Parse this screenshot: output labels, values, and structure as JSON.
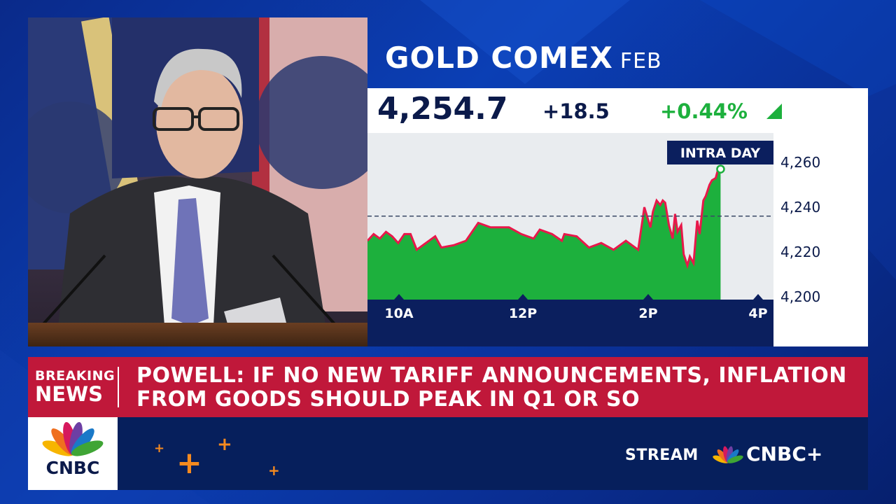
{
  "chart_title": "GOLD COMEX",
  "chart_subtitle": "FEB",
  "quote": {
    "price": "4,254.7",
    "change": "+18.5",
    "percent": "+0.44%"
  },
  "intraday_label": "INTRA DAY",
  "colors": {
    "up": "#1db03d",
    "line": "#e8184a",
    "breaking": "#c0183a",
    "navy": "#061f5c"
  },
  "chart_data": {
    "type": "area",
    "ylim": [
      4200,
      4265
    ],
    "reference_line": 4236,
    "x_ticks": [
      "10A",
      "12P",
      "2P",
      "4P"
    ],
    "y_ticks": [
      "4,260",
      "4,240",
      "4,220",
      "4,200"
    ],
    "x": [
      0,
      5,
      10,
      15,
      20,
      25,
      30,
      35,
      40,
      45,
      50,
      55,
      60,
      70,
      80,
      90,
      100,
      115,
      125,
      135,
      140,
      145,
      150,
      158,
      160,
      170,
      180,
      190,
      200,
      210,
      220,
      225,
      230,
      232,
      235,
      238,
      240,
      242,
      245,
      248,
      250,
      252,
      255,
      257,
      260,
      262,
      265,
      268,
      270,
      273,
      275,
      278,
      280,
      283,
      285,
      287
    ],
    "y": [
      4225,
      4228,
      4226,
      4229,
      4227,
      4224,
      4228,
      4228,
      4221,
      4223,
      4225,
      4227,
      4222,
      4223,
      4225,
      4233,
      4231,
      4231,
      4228,
      4226,
      4230,
      4229,
      4228,
      4225,
      4228,
      4227,
      4222,
      4224,
      4221,
      4225,
      4221,
      4240,
      4231,
      4238,
      4243,
      4241,
      4243,
      4242,
      4232,
      4226,
      4237,
      4229,
      4232,
      4219,
      4214,
      4218,
      4215,
      4234,
      4228,
      4243,
      4245,
      4250,
      4252,
      4253,
      4257,
      4257
    ]
  },
  "breaking": {
    "line1": "BREAKING",
    "line2": "NEWS",
    "headline": "POWELL: IF NO NEW TARIFF ANNOUNCEMENTS, INFLATION FROM GOODS SHOULD PEAK IN Q1 OR SO"
  },
  "network": {
    "logo_text": "CNBC",
    "stream_label": "STREAM",
    "stream_brand": "CNBC+"
  }
}
